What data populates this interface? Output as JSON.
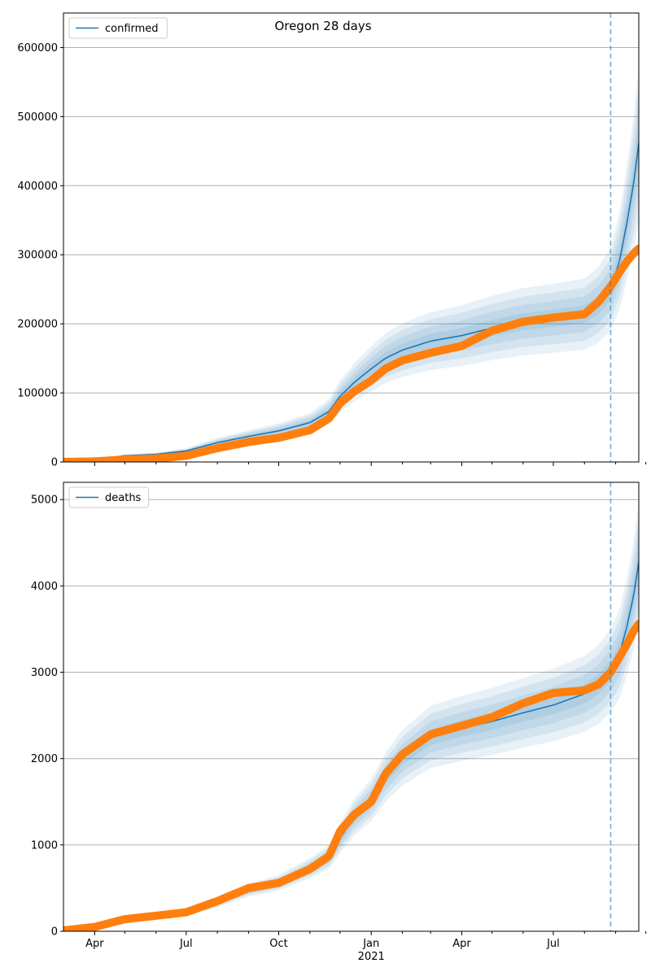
{
  "title": "Oregon 28 days",
  "colors": {
    "fit_line": "#1f77b4",
    "observed": "#ff7f0e",
    "band": "#1f77b4",
    "vline": "#1f77b4",
    "grid": "#b0b0b0"
  },
  "x_ticks": [
    {
      "date": "2020-04-01",
      "label": "Apr",
      "sub": ""
    },
    {
      "date": "2020-07-01",
      "label": "Jul",
      "sub": ""
    },
    {
      "date": "2020-10-01",
      "label": "Oct",
      "sub": ""
    },
    {
      "date": "2021-01-01",
      "label": "Jan",
      "sub": "2021"
    },
    {
      "date": "2021-04-01",
      "label": "Apr",
      "sub": ""
    },
    {
      "date": "2021-07-01",
      "label": "Jul",
      "sub": ""
    }
  ],
  "x_minor_ticks": [
    "2020-05-01",
    "2020-06-01",
    "2020-08-01",
    "2020-09-01",
    "2020-11-01",
    "2020-12-01",
    "2021-02-01",
    "2021-03-01",
    "2021-05-01",
    "2021-06-01",
    "2021-08-01",
    "2021-09-01",
    "2021-10-01"
  ],
  "chart_data": [
    {
      "type": "line",
      "xlim": [
        "2020-03-01",
        "2021-09-24"
      ],
      "ylim": [
        0,
        650000
      ],
      "yticks": [
        0,
        100000,
        200000,
        300000,
        400000,
        500000,
        600000
      ],
      "grid": "horizontal",
      "legend": {
        "label": "confirmed",
        "placement": "top-left"
      },
      "forecast_start": "2021-08-27",
      "fit": {
        "name": "confirmed",
        "x": [
          "2020-03-01",
          "2020-04-01",
          "2020-05-01",
          "2020-06-01",
          "2020-07-01",
          "2020-08-01",
          "2020-09-01",
          "2020-10-01",
          "2020-11-01",
          "2020-11-20",
          "2020-12-01",
          "2020-12-15",
          "2021-01-01",
          "2021-01-15",
          "2021-02-01",
          "2021-03-01",
          "2021-04-01",
          "2021-05-01",
          "2021-06-01",
          "2021-07-01",
          "2021-08-01",
          "2021-08-15",
          "2021-08-27",
          "2021-09-05",
          "2021-09-12",
          "2021-09-19",
          "2021-09-24"
        ],
        "y": [
          1000,
          3000,
          9000,
          11000,
          16000,
          28000,
          37000,
          45000,
          57000,
          73000,
          95000,
          115000,
          135000,
          150000,
          162000,
          175000,
          183000,
          194000,
          203000,
          208000,
          214000,
          228000,
          250000,
          292000,
          345000,
          405000,
          462000
        ]
      },
      "observed": {
        "x": [
          "2020-03-01",
          "2020-04-01",
          "2020-05-01",
          "2020-06-01",
          "2020-07-01",
          "2020-08-01",
          "2020-09-01",
          "2020-10-01",
          "2020-11-01",
          "2020-11-20",
          "2020-12-01",
          "2020-12-15",
          "2021-01-01",
          "2021-01-15",
          "2021-02-01",
          "2021-03-01",
          "2021-04-01",
          "2021-05-01",
          "2021-06-01",
          "2021-07-01",
          "2021-08-01",
          "2021-08-15",
          "2021-08-27",
          "2021-09-05",
          "2021-09-12",
          "2021-09-19",
          "2021-09-24"
        ],
        "y": [
          100,
          800,
          3500,
          5000,
          9000,
          20000,
          29000,
          35000,
          46000,
          63000,
          85000,
          102000,
          118000,
          135000,
          147000,
          158000,
          168000,
          190000,
          203000,
          209000,
          214000,
          232000,
          254000,
          275000,
          290000,
          302000,
          309000
        ]
      },
      "bands": [
        {
          "lo": 0.94,
          "hi": 1.06
        },
        {
          "lo": 0.88,
          "hi": 1.12
        },
        {
          "lo": 0.82,
          "hi": 1.18
        },
        {
          "lo": 0.76,
          "hi": 1.24
        }
      ]
    },
    {
      "type": "line",
      "xlim": [
        "2020-03-01",
        "2021-09-24"
      ],
      "ylim": [
        0,
        5200
      ],
      "yticks": [
        0,
        1000,
        2000,
        3000,
        4000,
        5000
      ],
      "grid": "horizontal",
      "legend": {
        "label": "deaths",
        "placement": "top-left"
      },
      "forecast_start": "2021-08-27",
      "fit": {
        "name": "deaths",
        "x": [
          "2020-03-01",
          "2020-04-01",
          "2020-05-01",
          "2020-06-01",
          "2020-07-01",
          "2020-08-01",
          "2020-09-01",
          "2020-10-01",
          "2020-11-01",
          "2020-11-20",
          "2020-12-01",
          "2020-12-15",
          "2021-01-01",
          "2021-01-15",
          "2021-02-01",
          "2021-03-01",
          "2021-04-01",
          "2021-05-01",
          "2021-06-01",
          "2021-07-01",
          "2021-08-01",
          "2021-08-15",
          "2021-08-27",
          "2021-09-05",
          "2021-09-12",
          "2021-09-19",
          "2021-09-24"
        ],
        "y": [
          10,
          40,
          130,
          170,
          210,
          330,
          480,
          560,
          730,
          860,
          1080,
          1320,
          1520,
          1780,
          2010,
          2250,
          2350,
          2430,
          2530,
          2620,
          2750,
          2860,
          3020,
          3220,
          3520,
          3900,
          4280
        ]
      },
      "observed": {
        "x": [
          "2020-03-01",
          "2020-04-01",
          "2020-05-01",
          "2020-06-01",
          "2020-07-01",
          "2020-08-01",
          "2020-09-01",
          "2020-10-01",
          "2020-11-01",
          "2020-11-20",
          "2020-12-01",
          "2020-12-15",
          "2021-01-01",
          "2021-01-15",
          "2021-02-01",
          "2021-03-01",
          "2021-04-01",
          "2021-05-01",
          "2021-06-01",
          "2021-07-01",
          "2021-08-01",
          "2021-08-15",
          "2021-08-27",
          "2021-09-05",
          "2021-09-12",
          "2021-09-19",
          "2021-09-24"
        ],
        "y": [
          10,
          50,
          140,
          180,
          220,
          350,
          500,
          560,
          720,
          870,
          1160,
          1350,
          1500,
          1820,
          2050,
          2280,
          2380,
          2480,
          2640,
          2760,
          2790,
          2860,
          3000,
          3180,
          3320,
          3480,
          3560
        ]
      },
      "bands": [
        {
          "lo": 0.96,
          "hi": 1.04
        },
        {
          "lo": 0.92,
          "hi": 1.08
        },
        {
          "lo": 0.88,
          "hi": 1.12
        },
        {
          "lo": 0.84,
          "hi": 1.16
        }
      ]
    }
  ]
}
